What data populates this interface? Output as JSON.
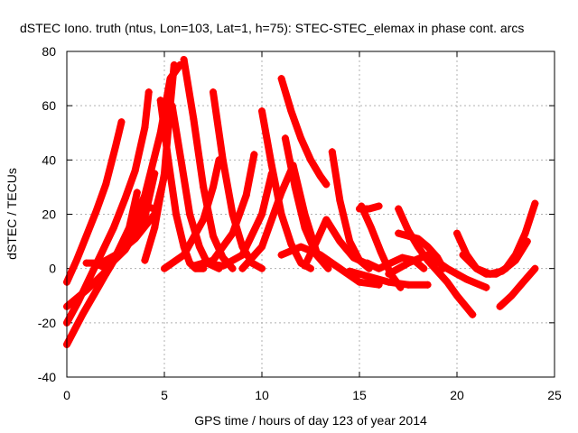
{
  "chart_data": {
    "type": "scatter",
    "title": "dSTEC Iono. truth (ntus, Lon=103, Lat=1, h=75): STEC-STEC_elemax in phase cont. arcs",
    "xlabel": "GPS time / hours of day 123 of year 2014",
    "ylabel": "dSTEC  / TECUs",
    "xlim": [
      0,
      25
    ],
    "ylim": [
      -40,
      80
    ],
    "x_ticks": [
      0,
      5,
      10,
      15,
      20,
      25
    ],
    "y_ticks": [
      -40,
      -20,
      0,
      20,
      40,
      60,
      80
    ],
    "grid": true,
    "legend": "none",
    "marker": "+",
    "color": "#ff0000",
    "series": [
      {
        "x": [
          0.0,
          0.5,
          1.0,
          1.5,
          2.0,
          2.5,
          2.8
        ],
        "y": [
          -5,
          3,
          12,
          21,
          31,
          45,
          54
        ]
      },
      {
        "x": [
          0.0,
          0.6,
          1.2,
          1.8,
          2.4,
          3.0,
          3.5,
          4.0,
          4.2
        ],
        "y": [
          -20,
          -12,
          -3,
          6,
          15,
          26,
          36,
          52,
          65
        ]
      },
      {
        "x": [
          0.0,
          0.8,
          1.6,
          2.4,
          3.2,
          3.6
        ],
        "y": [
          -28,
          -17,
          -7,
          3,
          15,
          28
        ]
      },
      {
        "x": [
          0.0,
          1.0,
          2.0,
          3.0,
          3.5,
          4.0,
          4.5
        ],
        "y": [
          -14,
          -8,
          -1,
          9,
          18,
          23,
          22
        ]
      },
      {
        "x": [
          1.5,
          2.5,
          3.5,
          4.5,
          5.0
        ],
        "y": [
          1,
          5,
          11,
          20,
          34
        ]
      },
      {
        "x": [
          1.0,
          1.5,
          2.0,
          3.0,
          4.0,
          4.5
        ],
        "y": [
          2,
          2,
          0,
          7,
          19,
          35
        ]
      },
      {
        "x": [
          4.8,
          5.2,
          5.6,
          6.0,
          6.3,
          6.6,
          7.0
        ],
        "y": [
          62,
          40,
          20,
          8,
          2,
          0,
          0
        ]
      },
      {
        "x": [
          4.0,
          4.5,
          5.0,
          5.3,
          5.5
        ],
        "y": [
          3,
          15,
          35,
          60,
          75
        ]
      },
      {
        "x": [
          2.0,
          3.0,
          4.0,
          4.8,
          5.3,
          5.8
        ],
        "y": [
          -2,
          10,
          27,
          50,
          70,
          75
        ]
      },
      {
        "x": [
          5.4,
          5.9,
          6.3,
          6.8,
          7.2,
          7.8
        ],
        "y": [
          60,
          38,
          20,
          8,
          2,
          0
        ]
      },
      {
        "x": [
          6.0,
          6.5,
          7.0,
          7.5,
          8.0,
          8.5
        ],
        "y": [
          77,
          55,
          30,
          12,
          4,
          0
        ]
      },
      {
        "x": [
          5.0,
          6.0,
          7.0,
          7.5,
          7.8
        ],
        "y": [
          0,
          5,
          18,
          30,
          40
        ]
      },
      {
        "x": [
          7.5,
          8.0,
          8.5,
          9.0,
          9.5,
          10.0
        ],
        "y": [
          65,
          40,
          20,
          8,
          2,
          0
        ]
      },
      {
        "x": [
          6.5,
          7.5,
          8.5,
          9.2,
          9.6
        ],
        "y": [
          1,
          3,
          13,
          27,
          42
        ]
      },
      {
        "x": [
          7.0,
          8.0,
          9.0,
          10.0,
          10.5
        ],
        "y": [
          2,
          1,
          5,
          20,
          35
        ]
      },
      {
        "x": [
          10.0,
          10.5,
          11.0,
          11.5,
          12.0,
          12.5
        ],
        "y": [
          58,
          38,
          20,
          9,
          2,
          0
        ]
      },
      {
        "x": [
          11.0,
          11.5,
          12.0,
          12.5,
          13.0,
          13.3
        ],
        "y": [
          70,
          58,
          48,
          40,
          34,
          31
        ]
      },
      {
        "x": [
          11.2,
          11.7,
          12.2,
          12.8,
          13.4
        ],
        "y": [
          48,
          30,
          15,
          5,
          0
        ]
      },
      {
        "x": [
          9.0,
          10.0,
          11.0,
          11.6,
          12.2,
          12.8,
          13.3
        ],
        "y": [
          0,
          8,
          28,
          38,
          20,
          6,
          1
        ]
      },
      {
        "x": [
          13.6,
          14.0,
          14.5,
          15.0,
          15.5
        ],
        "y": [
          43,
          25,
          10,
          3,
          0
        ]
      },
      {
        "x": [
          12.2,
          12.8,
          13.3,
          14.0,
          14.7,
          15.3
        ],
        "y": [
          1,
          10,
          18,
          10,
          4,
          2
        ]
      },
      {
        "x": [
          11.0,
          12.0,
          13.0,
          14.0,
          15.0,
          16.0
        ],
        "y": [
          5,
          8,
          5,
          0,
          -5,
          -6
        ]
      },
      {
        "x": [
          15.1,
          15.6,
          16.1,
          16.6,
          17.1
        ],
        "y": [
          23,
          15,
          6,
          -2,
          -7
        ]
      },
      {
        "x": [
          15.4,
          16.0,
          16.6,
          17.2,
          17.8,
          18.3
        ],
        "y": [
          2,
          0,
          2,
          4,
          3,
          0
        ]
      },
      {
        "x": [
          17.0,
          17.5,
          18.0,
          18.5,
          19.0,
          19.3
        ],
        "y": [
          13,
          12,
          11,
          8,
          4,
          0
        ]
      },
      {
        "x": [
          17.0,
          17.5,
          18.0,
          18.5,
          19.0,
          19.5,
          20.0,
          20.8
        ],
        "y": [
          22,
          14,
          8,
          3,
          -1,
          -5,
          -10,
          -17
        ]
      },
      {
        "x": [
          16.5,
          17.5,
          18.5,
          19.5,
          20.5,
          21.5
        ],
        "y": [
          -2,
          2,
          5,
          0,
          -4,
          -7
        ]
      },
      {
        "x": [
          20.0,
          20.5,
          21.0,
          21.5,
          22.0,
          22.5,
          23.0,
          23.5,
          24.0
        ],
        "y": [
          13,
          5,
          0,
          -2,
          -2,
          0,
          5,
          13,
          24
        ]
      },
      {
        "x": [
          20.3,
          21.0,
          21.7,
          22.3,
          23.0,
          23.6
        ],
        "y": [
          5,
          0,
          -2,
          -1,
          3,
          10
        ]
      },
      {
        "x": [
          22.2,
          22.8,
          23.4,
          24.0
        ],
        "y": [
          -14,
          -10,
          -5,
          0
        ]
      },
      {
        "x": [
          15.0,
          15.5,
          16.0
        ],
        "y": [
          22,
          22,
          23
        ]
      },
      {
        "x": [
          14.5,
          15.5,
          16.5,
          17.5,
          18.5
        ],
        "y": [
          -1,
          -3,
          -5,
          -6,
          -6
        ]
      }
    ]
  }
}
